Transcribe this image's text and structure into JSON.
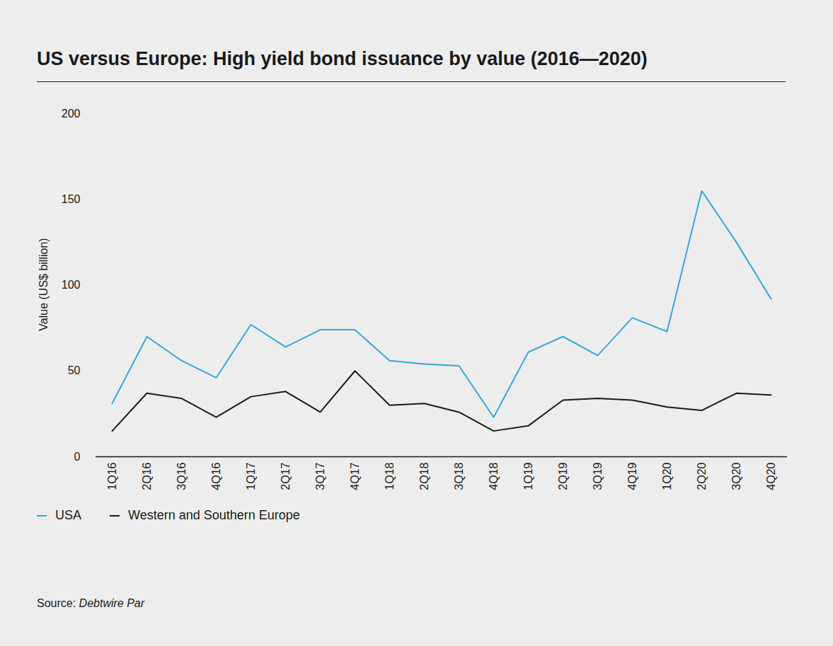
{
  "chart_data": {
    "type": "line",
    "title": "US versus Europe: High yield bond issuance by value (2016—2020)",
    "y_label": "Value (US$ billion)",
    "categories": [
      "1Q16",
      "2Q16",
      "3Q16",
      "4Q16",
      "1Q17",
      "2Q17",
      "3Q17",
      "4Q17",
      "1Q18",
      "2Q18",
      "3Q18",
      "4Q18",
      "1Q19",
      "2Q19",
      "3Q19",
      "4Q19",
      "1Q20",
      "2Q20",
      "3Q20",
      "4Q20"
    ],
    "series": [
      {
        "name": "USA",
        "color": "#35a7dc",
        "values": [
          31,
          70,
          56,
          46,
          77,
          64,
          74,
          74,
          56,
          54,
          53,
          23,
          61,
          70,
          59,
          81,
          73,
          155,
          125,
          92
        ]
      },
      {
        "name": "Western and Southern Europe",
        "color": "#1a1a1a",
        "values": [
          15,
          37,
          34,
          23,
          35,
          38,
          26,
          50,
          30,
          31,
          26,
          15,
          18,
          33,
          34,
          33,
          29,
          27,
          37,
          36
        ]
      }
    ],
    "ylim": [
      0,
      200
    ],
    "yticks": [
      0,
      50,
      100,
      150,
      200
    ],
    "grid": false,
    "legend": "bottom",
    "source_prefix": "Source:",
    "source": "Debtwire Par"
  }
}
